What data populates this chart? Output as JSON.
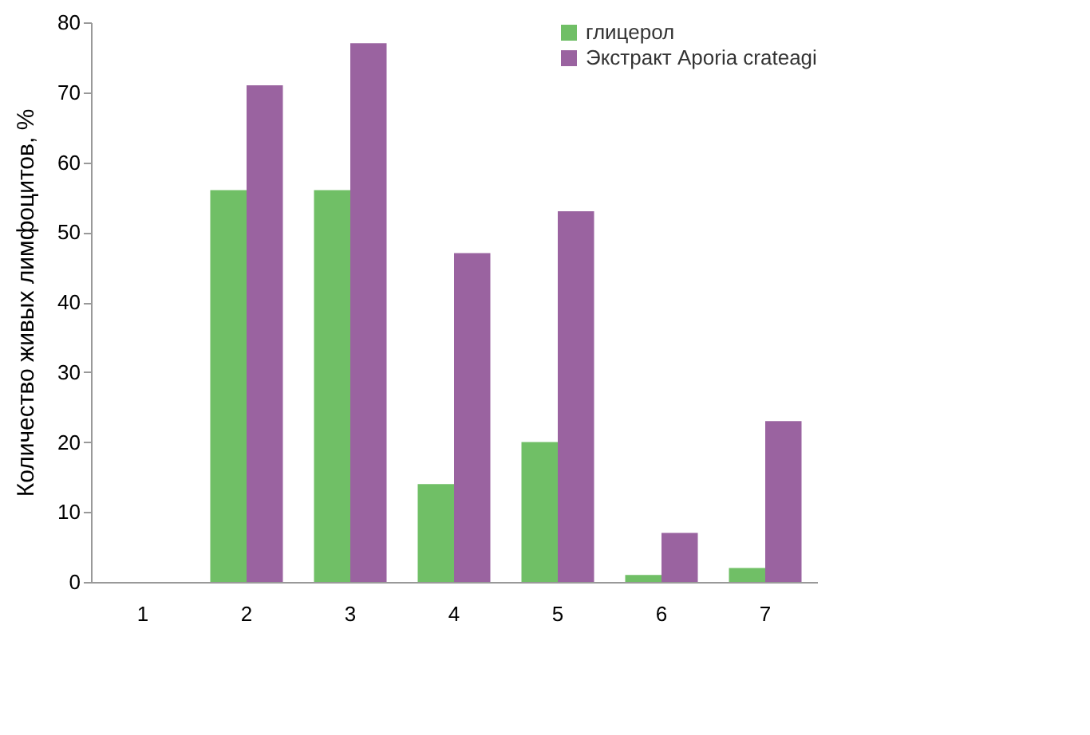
{
  "chart_data": {
    "type": "bar",
    "ylabel": "Количество живых лимфоцитов, %",
    "categories": [
      "1",
      "2",
      "3",
      "4",
      "5",
      "6",
      "7"
    ],
    "series": [
      {
        "name": "глицерол",
        "color": "#70bf66",
        "values": [
          null,
          56,
          56,
          14,
          20,
          1,
          2
        ]
      },
      {
        "name": "Экстракт Aporia crateagi",
        "color": "#9a63a0",
        "values": [
          null,
          71,
          77,
          47,
          53,
          7,
          23
        ]
      }
    ],
    "ylim": [
      0,
      80
    ],
    "yticks": [
      0,
      10,
      20,
      30,
      40,
      50,
      60,
      70,
      80
    ],
    "grid": false,
    "legend": "top right"
  }
}
